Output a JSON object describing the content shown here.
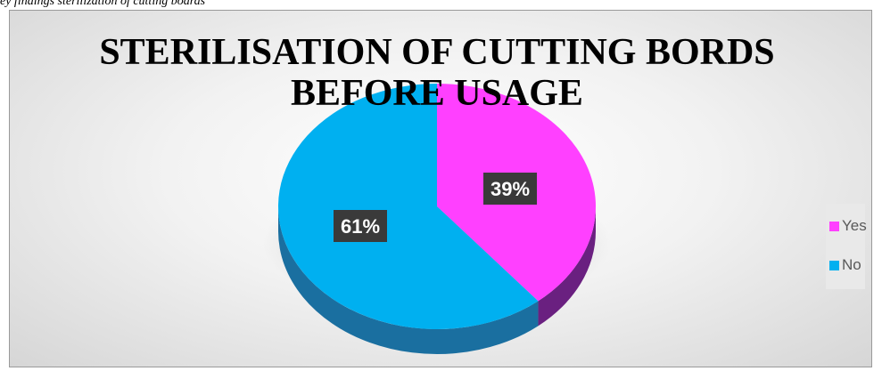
{
  "caption": "ey findings   sterilization of cutting boards",
  "colors": {
    "yes": "#ff40ff",
    "yes_side": "#6a2080",
    "no": "#00b0f0",
    "no_side": "#1a6fa0",
    "label_bg": "#3a3a3a",
    "label_text": "#ffffff"
  },
  "chart_data": {
    "type": "pie",
    "title_line1": "STERILISATION OF CUTTING BORDS",
    "title_line2": "BEFORE USAGE",
    "categories": [
      "Yes",
      "No"
    ],
    "values": [
      39,
      61
    ],
    "data_labels": [
      "39%",
      "61%"
    ],
    "legend": {
      "position": "right",
      "entries": [
        "Yes",
        "No"
      ]
    },
    "style": "3d"
  }
}
